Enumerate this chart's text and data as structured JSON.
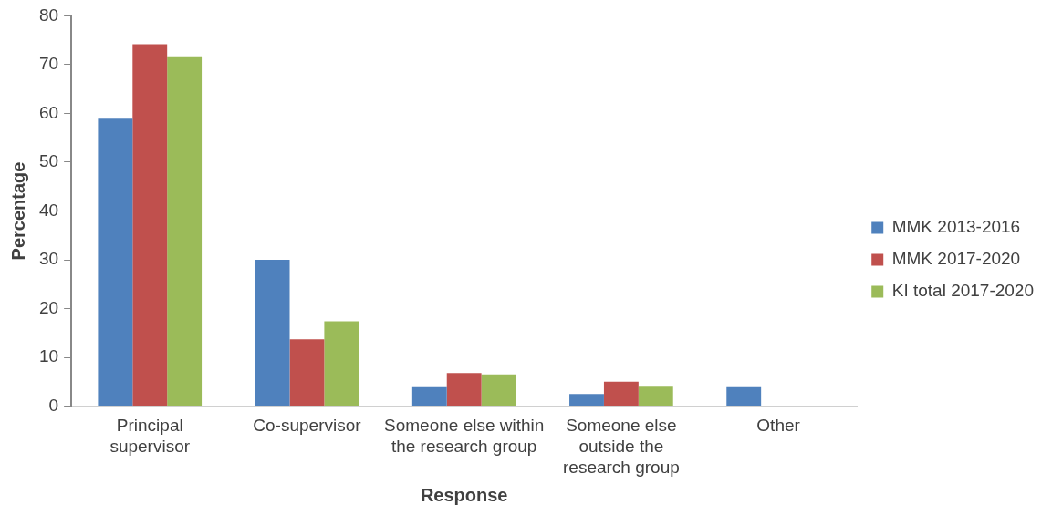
{
  "chart_data": {
    "type": "bar",
    "xlabel": "Response",
    "ylabel": "Percentage",
    "categories": [
      "Principal supervisor",
      "Co-supervisor",
      "Someone else within the research group",
      "Someone else outside the research group",
      "Other"
    ],
    "series": [
      {
        "name": "MMK 2013-2016",
        "color": "#4f81bd",
        "values": [
          58.9,
          30.0,
          3.9,
          2.5,
          3.9
        ]
      },
      {
        "name": "MMK 2017-2020",
        "color": "#c0504d",
        "values": [
          74.2,
          13.7,
          6.8,
          5.0,
          null
        ]
      },
      {
        "name": "KI total 2017-2020",
        "color": "#9bbb59",
        "values": [
          71.7,
          17.4,
          6.5,
          4.0,
          null
        ]
      }
    ],
    "ylim": [
      0,
      80
    ],
    "yticks": [
      0,
      10,
      20,
      30,
      40,
      50,
      60,
      70,
      80
    ],
    "grid": false,
    "legend": "right"
  }
}
